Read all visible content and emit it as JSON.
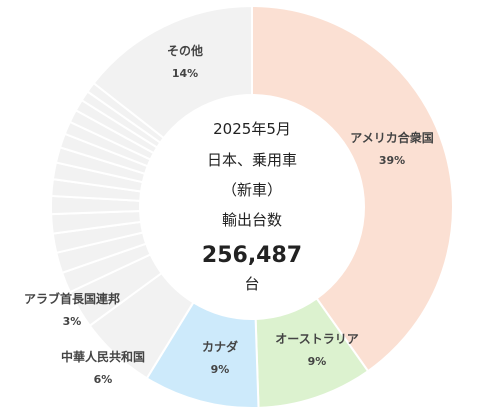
{
  "center": {
    "period": "2025年5月",
    "category": "日本、乗用車",
    "sub": "（新車）",
    "metric": "輸出台数",
    "total": "256,487",
    "unit": "台"
  },
  "chart_data": {
    "type": "pie",
    "style": "donut",
    "total": 256487,
    "unit": "台",
    "slices": [
      {
        "name": "アメリカ合衆国",
        "label": "39%",
        "value": 39,
        "color": "#fbe0d3"
      },
      {
        "name": "オーストラリア",
        "label": "9%",
        "value": 9,
        "color": "#dcf2cf"
      },
      {
        "name": "カナダ",
        "label": "9%",
        "value": 9,
        "color": "#cdeafb"
      },
      {
        "name": "中華人民共和国",
        "label": "6%",
        "value": 6,
        "color": "#f2f2f2"
      },
      {
        "name": "アラブ首長国連邦",
        "label": "3%",
        "value": 3,
        "color": "#f2f2f2"
      },
      {
        "name": "",
        "label": "",
        "value": 1.6,
        "color": "#f2f2f2"
      },
      {
        "name": "",
        "label": "",
        "value": 1.6,
        "color": "#f2f2f2"
      },
      {
        "name": "",
        "label": "",
        "value": 1.5,
        "color": "#f2f2f2"
      },
      {
        "name": "",
        "label": "",
        "value": 1.5,
        "color": "#f2f2f2"
      },
      {
        "name": "",
        "label": "",
        "value": 1.4,
        "color": "#f2f2f2"
      },
      {
        "name": "",
        "label": "",
        "value": 1.3,
        "color": "#f2f2f2"
      },
      {
        "name": "",
        "label": "",
        "value": 1.3,
        "color": "#f2f2f2"
      },
      {
        "name": "",
        "label": "",
        "value": 1.2,
        "color": "#f2f2f2"
      },
      {
        "name": "",
        "label": "",
        "value": 1.1,
        "color": "#f2f2f2"
      },
      {
        "name": "",
        "label": "",
        "value": 1.0,
        "color": "#f2f2f2"
      },
      {
        "name": "",
        "label": "",
        "value": 1.0,
        "color": "#f2f2f2"
      },
      {
        "name": "",
        "label": "",
        "value": 0.9,
        "color": "#f2f2f2"
      },
      {
        "name": "",
        "label": "",
        "value": 0.8,
        "color": "#f2f2f2"
      },
      {
        "name": "",
        "label": "",
        "value": 0.8,
        "color": "#f2f2f2"
      },
      {
        "name": "その他",
        "label": "14%",
        "value": 14,
        "color": "#f2f2f2"
      }
    ]
  }
}
